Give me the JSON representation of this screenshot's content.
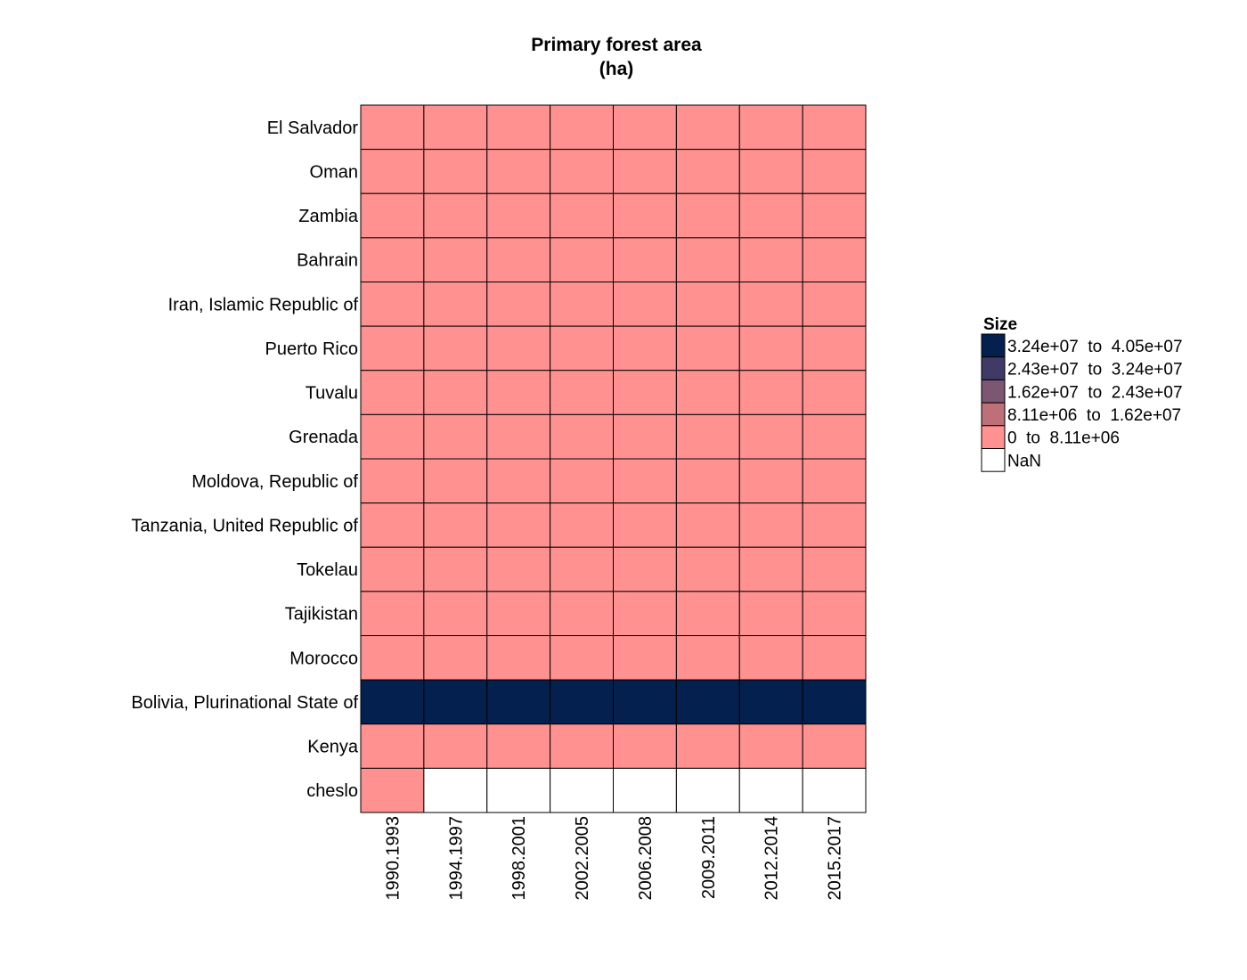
{
  "chart_data": {
    "type": "heatmap",
    "title": "Primary forest area",
    "subtitle": "(ha)",
    "rows": [
      "El Salvador",
      "Oman",
      "Zambia",
      "Bahrain",
      "Iran, Islamic Republic of",
      "Puerto Rico",
      "Tuvalu",
      "Grenada",
      "Moldova, Republic of",
      "Tanzania, United Republic of",
      "Tokelau",
      "Tajikistan",
      "Morocco",
      "Bolivia, Plurinational State of",
      "Kenya",
      "cheslo"
    ],
    "columns": [
      "1990.1993",
      "1994.1997",
      "1998.2001",
      "2002.2005",
      "2006.2008",
      "2009.2011",
      "2012.2014",
      "2015.2017"
    ],
    "bins": [
      "0 to 8.11e+06",
      "0 to 8.11e+06",
      "0 to 8.11e+06",
      "0 to 8.11e+06",
      "0 to 8.11e+06",
      "0 to 8.11e+06",
      "0 to 8.11e+06",
      "0 to 8.11e+06",
      "0 to 8.11e+06",
      "0 to 8.11e+06",
      "0 to 8.11e+06",
      "0 to 8.11e+06",
      "0 to 8.11e+06",
      "3.24e+07 to 4.05e+07",
      "0 to 8.11e+06",
      "0 to 8.11e+06"
    ],
    "cells_by_row": [
      [
        0,
        0,
        0,
        0,
        0,
        0,
        0,
        0
      ],
      [
        0,
        0,
        0,
        0,
        0,
        0,
        0,
        0
      ],
      [
        0,
        0,
        0,
        0,
        0,
        0,
        0,
        0
      ],
      [
        0,
        0,
        0,
        0,
        0,
        0,
        0,
        0
      ],
      [
        0,
        0,
        0,
        0,
        0,
        0,
        0,
        0
      ],
      [
        0,
        0,
        0,
        0,
        0,
        0,
        0,
        0
      ],
      [
        0,
        0,
        0,
        0,
        0,
        0,
        0,
        0
      ],
      [
        0,
        0,
        0,
        0,
        0,
        0,
        0,
        0
      ],
      [
        0,
        0,
        0,
        0,
        0,
        0,
        0,
        0
      ],
      [
        0,
        0,
        0,
        0,
        0,
        0,
        0,
        0
      ],
      [
        0,
        0,
        0,
        0,
        0,
        0,
        0,
        0
      ],
      [
        0,
        0,
        0,
        0,
        0,
        0,
        0,
        0
      ],
      [
        0,
        0,
        0,
        0,
        0,
        0,
        0,
        0
      ],
      [
        4,
        4,
        4,
        4,
        4,
        4,
        4,
        4
      ],
      [
        0,
        0,
        0,
        0,
        0,
        0,
        0,
        0
      ],
      [
        0,
        null,
        null,
        null,
        null,
        null,
        null,
        null
      ]
    ],
    "legend": {
      "title": "Size",
      "position": "right",
      "items": [
        {
          "label": "3.24e+07  to  4.05e+07",
          "color": "#03204f"
        },
        {
          "label": "2.43e+07  to  3.24e+07",
          "color": "#3f3a66"
        },
        {
          "label": "1.62e+07  to  2.43e+07",
          "color": "#7c5673"
        },
        {
          "label": "8.11e+06  to  1.62e+07",
          "color": "#bd7078"
        },
        {
          "label": "0  to  8.11e+06",
          "color": "#ff9191"
        },
        {
          "label": "NaN",
          "color": "#ffffff"
        }
      ]
    },
    "bin_colors": [
      "#ff9191",
      "#bd7078",
      "#7c5673",
      "#3f3a66",
      "#03204f"
    ],
    "nan_color": "#ffffff",
    "grid_line_color": "#000000"
  }
}
